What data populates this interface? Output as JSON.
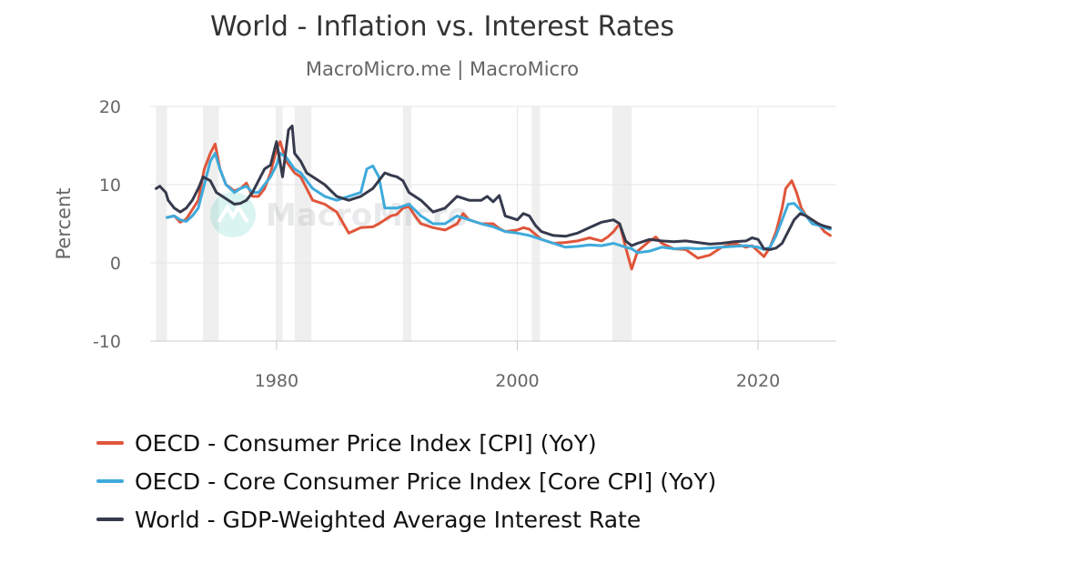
{
  "header": {
    "title": "World - Inflation vs. Interest Rates",
    "subtitle": "MacroMicro.me | MacroMicro"
  },
  "watermark": {
    "text": "MacroMicro",
    "icon": "macromicro-logo-icon"
  },
  "colors": {
    "cpi": "#e0563b",
    "core_cpi": "#3eaadb",
    "rate": "#363a4d",
    "recession": "#efefef",
    "grid": "#e6e6e6"
  },
  "chart_data": {
    "type": "line",
    "title": "World - Inflation vs. Interest Rates",
    "subtitle": "MacroMicro.me | MacroMicro",
    "xlabel": "",
    "ylabel": "Percent",
    "xlim": [
      1969.5,
      2026.5
    ],
    "ylim": [
      -10,
      20
    ],
    "x_ticks": [
      1980,
      2000,
      2020
    ],
    "y_ticks": [
      -10,
      0,
      10,
      20
    ],
    "grid": true,
    "legend_position": "bottom",
    "recession_shading": [
      [
        1970.0,
        1970.9
      ],
      [
        1973.9,
        1975.2
      ],
      [
        1980.0,
        1980.5
      ],
      [
        1981.5,
        1982.9
      ],
      [
        1990.5,
        1991.2
      ],
      [
        2001.2,
        2001.9
      ],
      [
        2007.9,
        2009.5
      ]
    ],
    "series": [
      {
        "name": "OECD - Consumer Price Index [CPI] (YoY)",
        "color": "#e0563b",
        "points": [
          [
            1970.9,
            5.8
          ],
          [
            1971.5,
            6.0
          ],
          [
            1972.0,
            5.2
          ],
          [
            1972.5,
            5.6
          ],
          [
            1973.0,
            6.8
          ],
          [
            1973.5,
            8.0
          ],
          [
            1974.0,
            12.0
          ],
          [
            1974.5,
            14.0
          ],
          [
            1974.9,
            15.2
          ],
          [
            1975.3,
            12.0
          ],
          [
            1975.8,
            10.0
          ],
          [
            1976.5,
            9.2
          ],
          [
            1977.0,
            9.5
          ],
          [
            1977.5,
            10.2
          ],
          [
            1978.0,
            8.5
          ],
          [
            1978.5,
            8.5
          ],
          [
            1979.0,
            9.5
          ],
          [
            1979.5,
            11.5
          ],
          [
            1980.0,
            14.5
          ],
          [
            1980.3,
            15.5
          ],
          [
            1980.8,
            13.0
          ],
          [
            1981.5,
            11.5
          ],
          [
            1982.0,
            11.0
          ],
          [
            1982.5,
            9.5
          ],
          [
            1983.0,
            8.0
          ],
          [
            1984.0,
            7.5
          ],
          [
            1985.0,
            6.5
          ],
          [
            1986.0,
            3.8
          ],
          [
            1987.0,
            4.5
          ],
          [
            1988.0,
            4.6
          ],
          [
            1988.5,
            5.0
          ],
          [
            1989.0,
            5.5
          ],
          [
            1989.5,
            6.0
          ],
          [
            1990.0,
            6.2
          ],
          [
            1990.5,
            7.0
          ],
          [
            1991.0,
            7.2
          ],
          [
            1991.5,
            6.0
          ],
          [
            1992.0,
            5.0
          ],
          [
            1993.0,
            4.5
          ],
          [
            1994.0,
            4.2
          ],
          [
            1995.0,
            5.0
          ],
          [
            1995.5,
            6.3
          ],
          [
            1996.0,
            5.5
          ],
          [
            1997.0,
            5.0
          ],
          [
            1998.0,
            5.0
          ],
          [
            1998.5,
            4.4
          ],
          [
            1999.0,
            4.0
          ],
          [
            2000.0,
            4.2
          ],
          [
            2000.5,
            4.5
          ],
          [
            2001.0,
            4.3
          ],
          [
            2002.0,
            3.0
          ],
          [
            2003.0,
            2.5
          ],
          [
            2004.0,
            2.6
          ],
          [
            2005.0,
            2.8
          ],
          [
            2006.0,
            3.2
          ],
          [
            2007.0,
            2.8
          ],
          [
            2007.5,
            3.3
          ],
          [
            2008.0,
            4.0
          ],
          [
            2008.5,
            5.0
          ],
          [
            2009.0,
            2.0
          ],
          [
            2009.5,
            -0.8
          ],
          [
            2010.0,
            1.5
          ],
          [
            2011.0,
            2.8
          ],
          [
            2011.5,
            3.3
          ],
          [
            2012.0,
            2.5
          ],
          [
            2013.0,
            1.8
          ],
          [
            2014.0,
            1.7
          ],
          [
            2015.0,
            0.6
          ],
          [
            2016.0,
            1.0
          ],
          [
            2017.0,
            2.0
          ],
          [
            2018.0,
            2.5
          ],
          [
            2019.0,
            2.0
          ],
          [
            2019.5,
            2.2
          ],
          [
            2020.0,
            1.5
          ],
          [
            2020.5,
            0.8
          ],
          [
            2021.0,
            2.0
          ],
          [
            2021.5,
            4.0
          ],
          [
            2022.0,
            7.0
          ],
          [
            2022.3,
            9.5
          ],
          [
            2022.8,
            10.5
          ],
          [
            2023.2,
            9.0
          ],
          [
            2023.6,
            7.0
          ],
          [
            2024.0,
            6.0
          ],
          [
            2024.5,
            5.5
          ],
          [
            2025.0,
            5.0
          ],
          [
            2025.5,
            4.0
          ],
          [
            2026.0,
            3.5
          ]
        ]
      },
      {
        "name": "OECD - Core Consumer Price Index [Core CPI] (YoY)",
        "color": "#3eaadb",
        "points": [
          [
            1970.9,
            5.8
          ],
          [
            1971.5,
            6.0
          ],
          [
            1972.0,
            5.5
          ],
          [
            1972.5,
            5.3
          ],
          [
            1973.0,
            6.0
          ],
          [
            1973.5,
            7.0
          ],
          [
            1974.0,
            10.0
          ],
          [
            1974.5,
            13.0
          ],
          [
            1974.9,
            14.0
          ],
          [
            1975.3,
            12.0
          ],
          [
            1975.8,
            10.0
          ],
          [
            1976.5,
            9.0
          ],
          [
            1977.0,
            9.5
          ],
          [
            1977.5,
            9.8
          ],
          [
            1978.0,
            9.0
          ],
          [
            1978.5,
            9.0
          ],
          [
            1979.0,
            10.0
          ],
          [
            1979.5,
            11.0
          ],
          [
            1980.0,
            12.5
          ],
          [
            1980.3,
            14.0
          ],
          [
            1980.8,
            13.5
          ],
          [
            1981.5,
            12.0
          ],
          [
            1982.0,
            11.5
          ],
          [
            1982.5,
            10.5
          ],
          [
            1983.0,
            9.5
          ],
          [
            1984.0,
            8.5
          ],
          [
            1985.0,
            8.0
          ],
          [
            1986.0,
            8.5
          ],
          [
            1987.0,
            9.0
          ],
          [
            1987.5,
            12.0
          ],
          [
            1988.0,
            12.4
          ],
          [
            1988.5,
            11.0
          ],
          [
            1989.0,
            7.0
          ],
          [
            1990.0,
            7.0
          ],
          [
            1991.0,
            7.5
          ],
          [
            1992.0,
            6.0
          ],
          [
            1993.0,
            5.0
          ],
          [
            1994.0,
            5.0
          ],
          [
            1995.0,
            6.0
          ],
          [
            1996.0,
            5.5
          ],
          [
            1997.0,
            5.0
          ],
          [
            1998.0,
            4.6
          ],
          [
            1999.0,
            4.0
          ],
          [
            2000.0,
            3.8
          ],
          [
            2001.0,
            3.5
          ],
          [
            2002.0,
            3.0
          ],
          [
            2003.0,
            2.5
          ],
          [
            2004.0,
            2.0
          ],
          [
            2005.0,
            2.1
          ],
          [
            2006.0,
            2.3
          ],
          [
            2007.0,
            2.2
          ],
          [
            2008.0,
            2.5
          ],
          [
            2009.0,
            2.0
          ],
          [
            2009.5,
            1.8
          ],
          [
            2010.0,
            1.3
          ],
          [
            2011.0,
            1.5
          ],
          [
            2012.0,
            2.0
          ],
          [
            2013.0,
            1.8
          ],
          [
            2014.0,
            1.9
          ],
          [
            2015.0,
            1.8
          ],
          [
            2016.0,
            1.9
          ],
          [
            2017.0,
            2.0
          ],
          [
            2018.0,
            2.1
          ],
          [
            2019.0,
            2.2
          ],
          [
            2020.0,
            2.0
          ],
          [
            2020.5,
            1.7
          ],
          [
            2021.0,
            2.0
          ],
          [
            2021.5,
            3.5
          ],
          [
            2022.0,
            5.5
          ],
          [
            2022.5,
            7.5
          ],
          [
            2023.0,
            7.6
          ],
          [
            2023.5,
            6.8
          ],
          [
            2024.0,
            6.0
          ],
          [
            2024.5,
            5.0
          ],
          [
            2025.0,
            4.8
          ],
          [
            2025.5,
            4.5
          ],
          [
            2026.0,
            4.3
          ]
        ]
      },
      {
        "name": "World - GDP-Weighted Average Interest Rate",
        "color": "#363a4d",
        "points": [
          [
            1970.0,
            9.5
          ],
          [
            1970.3,
            9.8
          ],
          [
            1970.8,
            9.0
          ],
          [
            1971.0,
            8.0
          ],
          [
            1971.5,
            7.0
          ],
          [
            1972.0,
            6.5
          ],
          [
            1972.5,
            7.0
          ],
          [
            1973.0,
            8.0
          ],
          [
            1973.5,
            9.5
          ],
          [
            1973.9,
            11.0
          ],
          [
            1974.5,
            10.5
          ],
          [
            1975.0,
            9.0
          ],
          [
            1975.5,
            8.5
          ],
          [
            1976.0,
            8.0
          ],
          [
            1976.5,
            7.5
          ],
          [
            1977.0,
            7.6
          ],
          [
            1977.5,
            8.0
          ],
          [
            1978.0,
            9.0
          ],
          [
            1978.5,
            10.5
          ],
          [
            1979.0,
            12.0
          ],
          [
            1979.5,
            12.5
          ],
          [
            1980.0,
            15.5
          ],
          [
            1980.5,
            11.0
          ],
          [
            1981.0,
            17.0
          ],
          [
            1981.3,
            17.5
          ],
          [
            1981.5,
            14.0
          ],
          [
            1982.0,
            13.0
          ],
          [
            1982.5,
            11.5
          ],
          [
            1983.0,
            11.0
          ],
          [
            1984.0,
            10.0
          ],
          [
            1985.0,
            8.5
          ],
          [
            1986.0,
            8.0
          ],
          [
            1987.0,
            8.5
          ],
          [
            1988.0,
            9.5
          ],
          [
            1989.0,
            11.5
          ],
          [
            1989.5,
            11.2
          ],
          [
            1990.0,
            11.0
          ],
          [
            1990.5,
            10.5
          ],
          [
            1991.0,
            9.0
          ],
          [
            1992.0,
            8.0
          ],
          [
            1993.0,
            6.5
          ],
          [
            1994.0,
            7.0
          ],
          [
            1995.0,
            8.5
          ],
          [
            1996.0,
            8.0
          ],
          [
            1997.0,
            8.0
          ],
          [
            1997.5,
            8.5
          ],
          [
            1998.0,
            7.8
          ],
          [
            1998.5,
            8.6
          ],
          [
            1999.0,
            6.0
          ],
          [
            2000.0,
            5.5
          ],
          [
            2000.5,
            6.3
          ],
          [
            2001.0,
            6.0
          ],
          [
            2001.5,
            4.8
          ],
          [
            2002.0,
            4.0
          ],
          [
            2003.0,
            3.5
          ],
          [
            2004.0,
            3.4
          ],
          [
            2005.0,
            3.8
          ],
          [
            2006.0,
            4.5
          ],
          [
            2007.0,
            5.2
          ],
          [
            2008.0,
            5.5
          ],
          [
            2008.5,
            5.0
          ],
          [
            2009.0,
            2.8
          ],
          [
            2009.5,
            2.2
          ],
          [
            2010.0,
            2.5
          ],
          [
            2011.0,
            3.0
          ],
          [
            2012.0,
            2.8
          ],
          [
            2013.0,
            2.7
          ],
          [
            2014.0,
            2.8
          ],
          [
            2015.0,
            2.6
          ],
          [
            2016.0,
            2.4
          ],
          [
            2017.0,
            2.5
          ],
          [
            2018.0,
            2.7
          ],
          [
            2019.0,
            2.8
          ],
          [
            2019.5,
            3.2
          ],
          [
            2020.0,
            3.0
          ],
          [
            2020.5,
            1.8
          ],
          [
            2021.0,
            1.7
          ],
          [
            2021.5,
            1.9
          ],
          [
            2022.0,
            2.5
          ],
          [
            2022.5,
            4.0
          ],
          [
            2023.0,
            5.5
          ],
          [
            2023.5,
            6.3
          ],
          [
            2024.0,
            6.0
          ],
          [
            2024.5,
            5.5
          ],
          [
            2025.0,
            5.0
          ],
          [
            2025.5,
            4.7
          ],
          [
            2026.0,
            4.5
          ]
        ]
      }
    ]
  }
}
